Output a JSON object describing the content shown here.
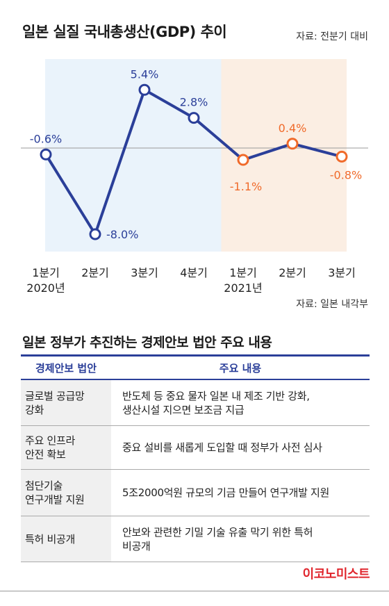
{
  "chart_data": {
    "type": "line",
    "title": "일본 실질 국내총생산(GDP) 추이",
    "source": "자료: 전분기 대비",
    "bottom_source": "자료: 일본 내각부",
    "categories": [
      "1분기",
      "2분기",
      "3분기",
      "4분기",
      "1분기",
      "2분기",
      "3분기"
    ],
    "year_labels": [
      "2020년",
      "",
      "",
      "",
      "2021년",
      "",
      ""
    ],
    "values": [
      -0.6,
      -8.0,
      5.4,
      2.8,
      -1.1,
      0.4,
      -0.8
    ],
    "value_labels": [
      "-0.6%",
      "-8.0%",
      "5.4%",
      "2.8%",
      "-1.1%",
      "0.4%",
      "-0.8%"
    ],
    "point_periods": [
      "2020",
      "2020",
      "2020",
      "2020",
      "2021",
      "2021",
      "2021"
    ],
    "ylim": [
      -9.0,
      7.0
    ],
    "grid": false,
    "zero_line": true,
    "colors": {
      "line": "#2b3f99",
      "marker_2020": "#2b3f99",
      "marker_2021": "#f06a2a",
      "band_2020": "#eaf3fb",
      "band_2021": "#fbeee3",
      "label_2020": "#2b3f99",
      "label_2021": "#f06a2a"
    }
  },
  "table": {
    "title": "일본 정부가 추진하는 경제안보 법안 주요 내용",
    "headers": [
      "경제안보 법안",
      "주요 내용"
    ],
    "rows": [
      {
        "law_1": "글로벌 공급망",
        "law_2": "강화",
        "content_1": "반도체 등 중요 물자 일본 내 제조 기반 강화,",
        "content_2": "생산시설 지으면 보조금 지급"
      },
      {
        "law_1": "주요 인프라",
        "law_2": "안전 확보",
        "content_1": "중요 설비를 새롭게 도입할 때 정부가 사전 심사",
        "content_2": ""
      },
      {
        "law_1": "첨단기술",
        "law_2": "연구개발 지원",
        "content_1": "5조2000억원 규모의 기금 만들어 연구개발 지원",
        "content_2": ""
      },
      {
        "law_1": "특허 비공개",
        "law_2": "",
        "content_1": "안보와 관련한 기밀 기술 유출 막기 위한 특허",
        "content_2": "비공개"
      }
    ]
  },
  "brand": "이코노미스트"
}
